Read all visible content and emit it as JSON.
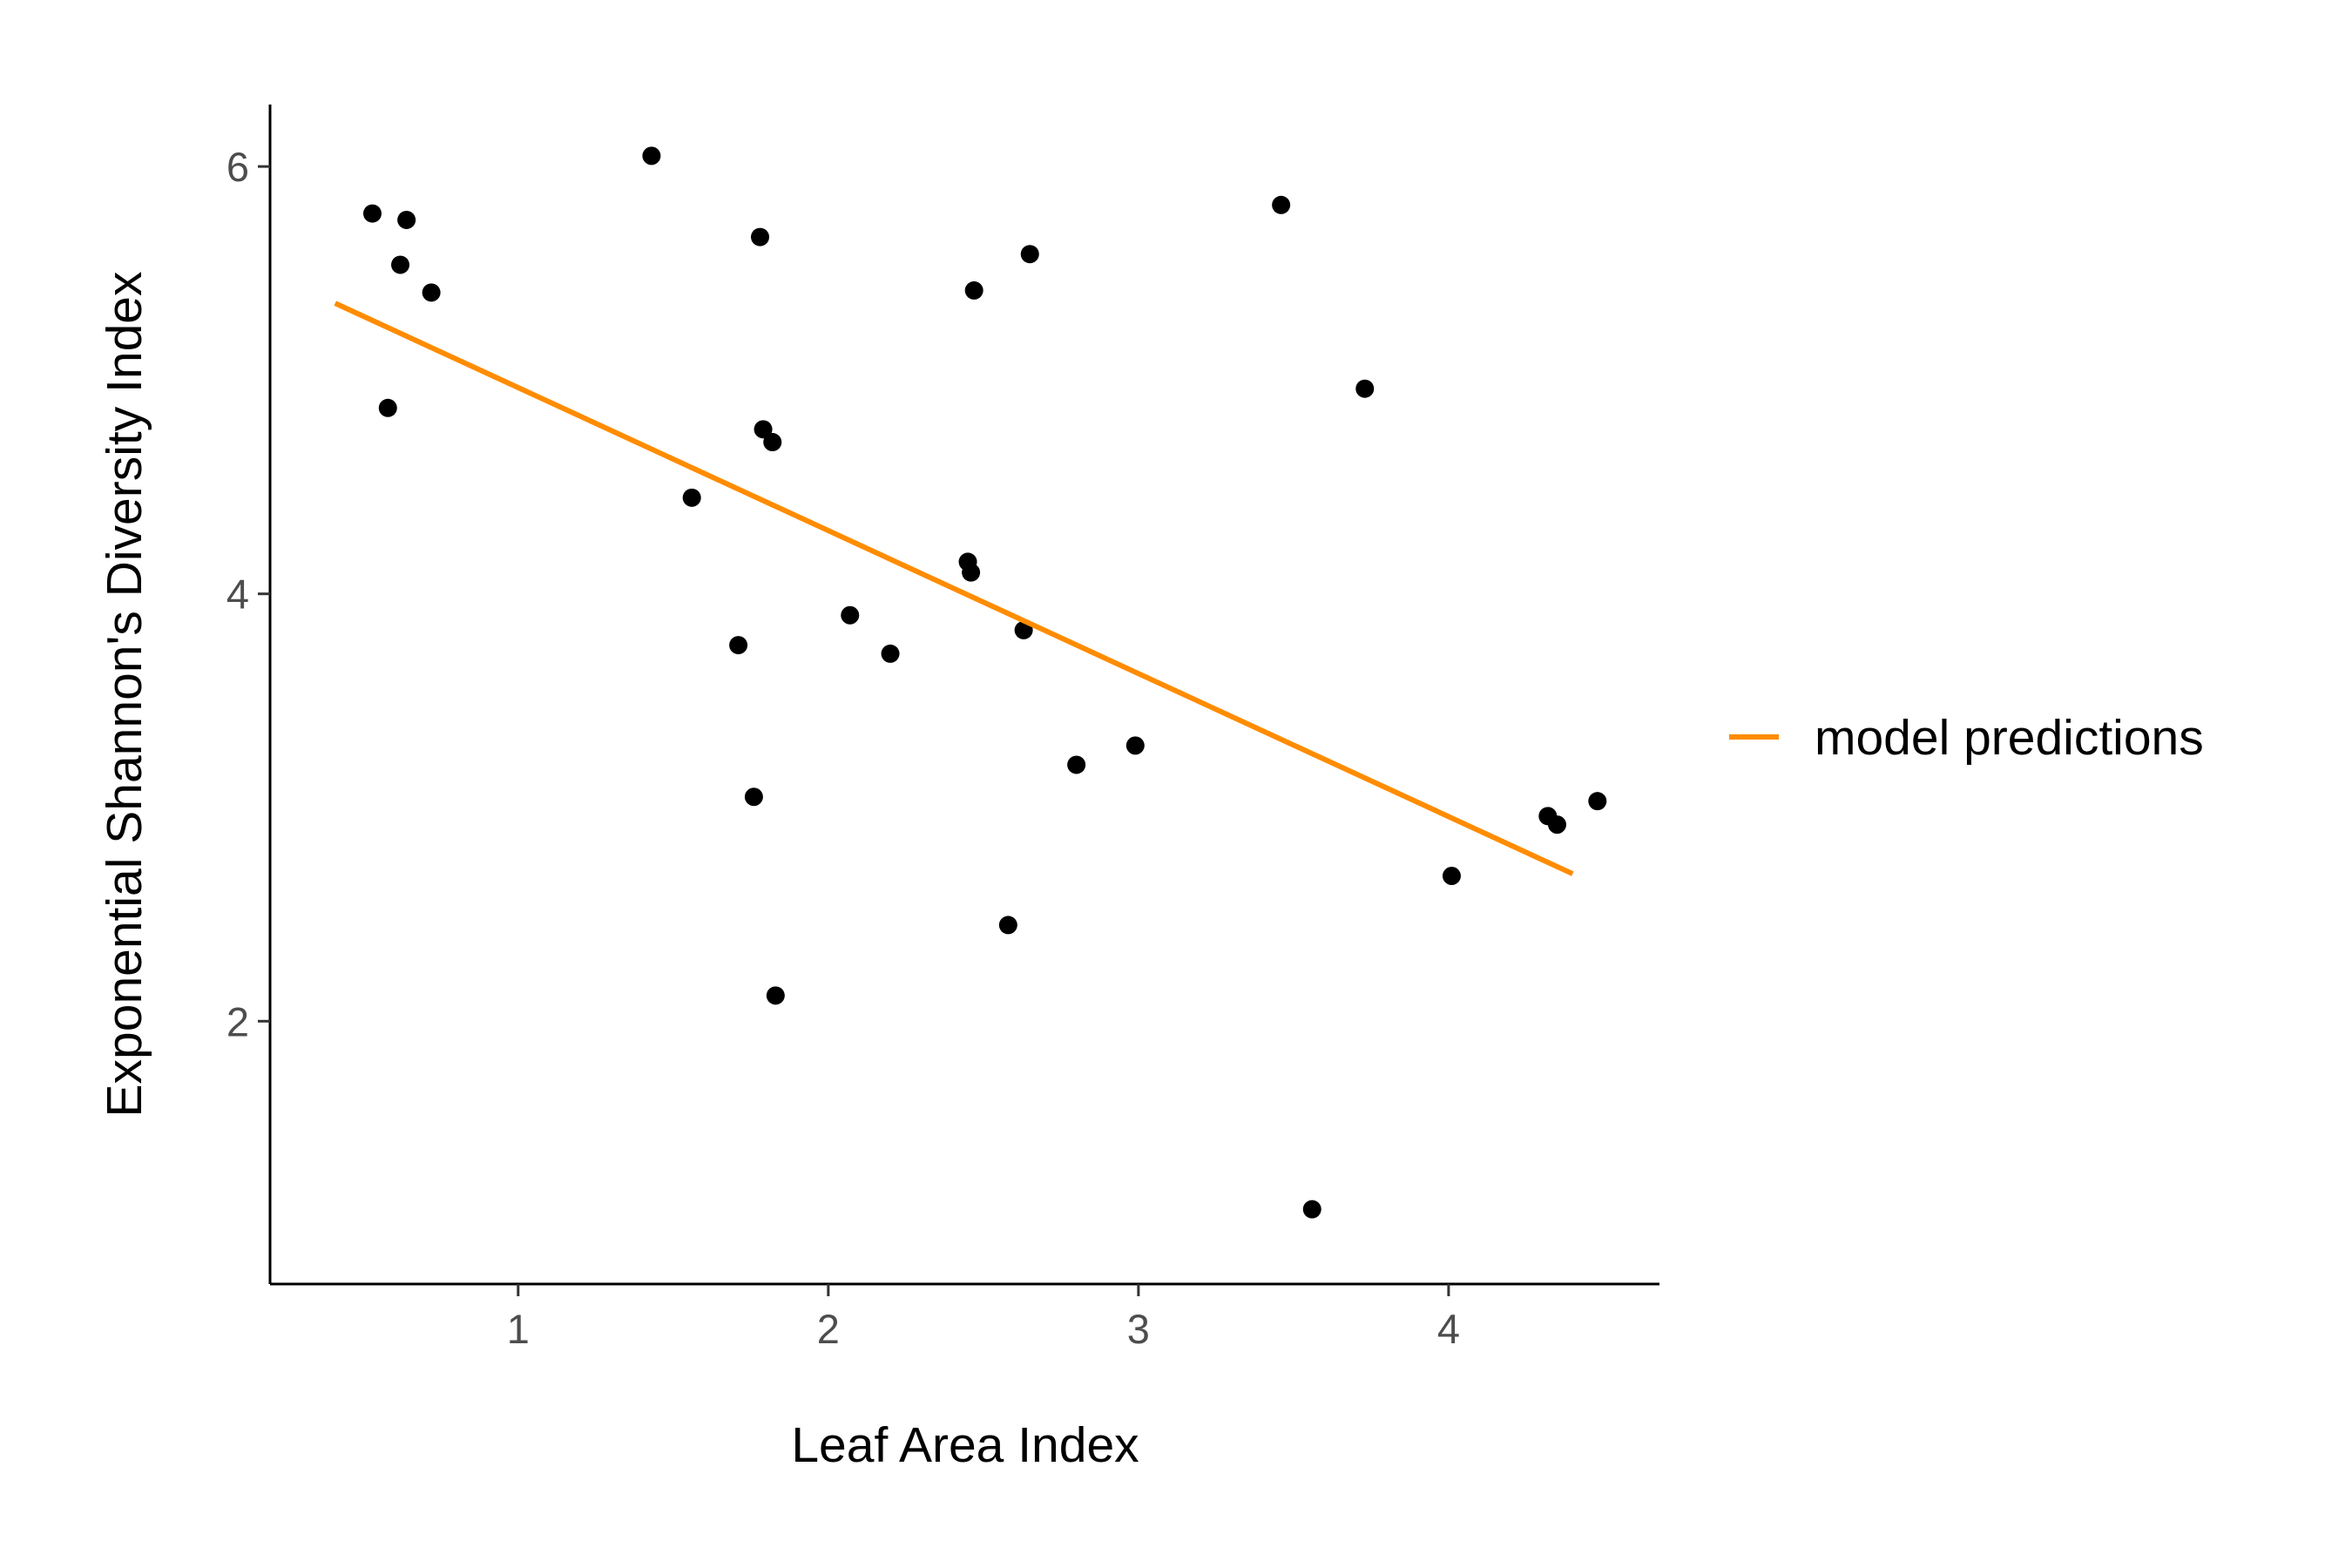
{
  "chart_data": {
    "type": "scatter",
    "xlabel": "Leaf Area Index",
    "ylabel": "Exponential Shannon's Diversity Index",
    "xlim": [
      0.2,
      4.68
    ],
    "ylim": [
      0.77,
      6.29
    ],
    "xticks": [
      1,
      2,
      3,
      4
    ],
    "yticks": [
      2,
      4,
      6
    ],
    "grid": false,
    "legend_position": "right",
    "series": [
      {
        "type": "scatter",
        "color": "#000000",
        "points": [
          [
            0.53,
            5.78
          ],
          [
            0.64,
            5.75
          ],
          [
            0.62,
            5.54
          ],
          [
            0.72,
            5.41
          ],
          [
            0.58,
            4.87
          ],
          [
            1.43,
            6.05
          ],
          [
            1.78,
            5.67
          ],
          [
            1.79,
            4.77
          ],
          [
            1.82,
            4.71
          ],
          [
            1.56,
            4.45
          ],
          [
            1.71,
            3.76
          ],
          [
            1.76,
            3.05
          ],
          [
            1.83,
            2.12
          ],
          [
            2.07,
            3.9
          ],
          [
            2.2,
            3.72
          ],
          [
            2.45,
            4.15
          ],
          [
            2.46,
            4.1
          ],
          [
            2.47,
            5.42
          ],
          [
            2.65,
            5.59
          ],
          [
            2.63,
            3.83
          ],
          [
            2.58,
            2.45
          ],
          [
            2.8,
            3.2
          ],
          [
            2.99,
            3.29
          ],
          [
            3.46,
            5.82
          ],
          [
            3.73,
            4.96
          ],
          [
            3.56,
            1.12
          ],
          [
            4.01,
            2.68
          ],
          [
            4.32,
            2.96
          ],
          [
            4.35,
            2.92
          ],
          [
            4.48,
            3.03
          ]
        ]
      },
      {
        "type": "line",
        "name": "model predictions",
        "color": "#FF8C00",
        "x": [
          0.41,
          4.4
        ],
        "y": [
          5.36,
          2.69
        ]
      }
    ]
  }
}
